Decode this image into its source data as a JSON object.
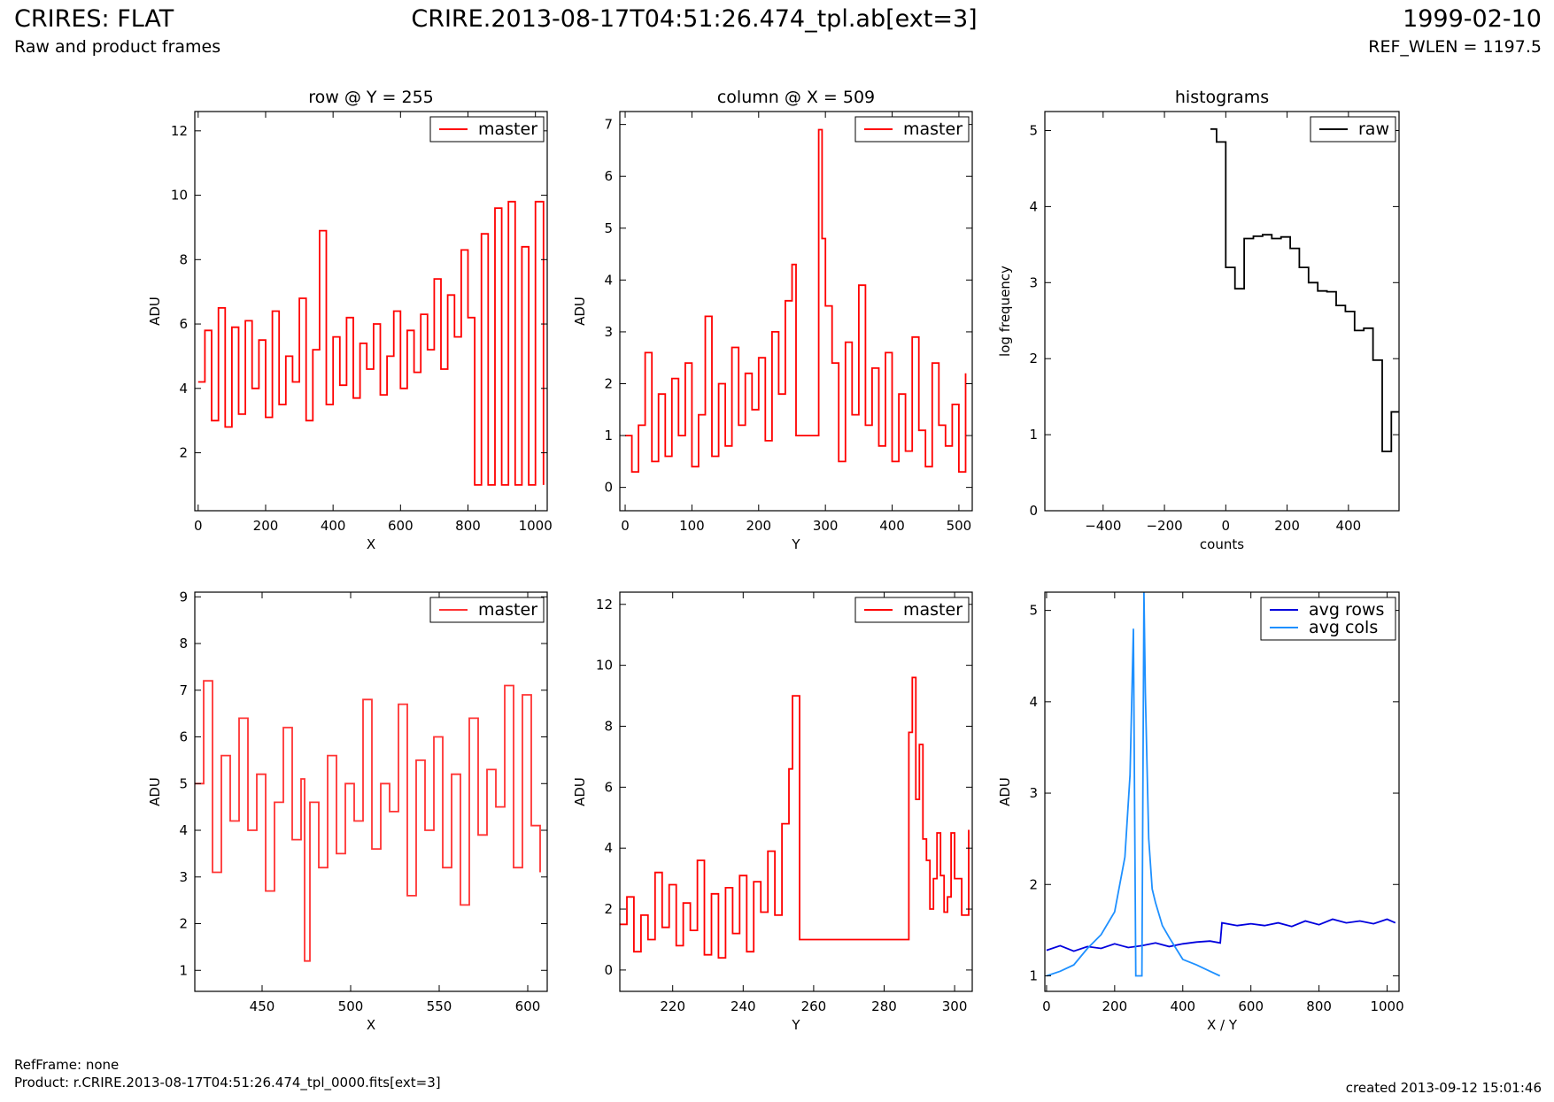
{
  "header": {
    "title": "CRIRES: FLAT",
    "subtitle": "Raw and product frames",
    "filename": "CRIRE.2013-08-17T04:51:26.474_tpl.ab[ext=3]",
    "date": "1999-02-10",
    "ref_wlen": "REF_WLEN = 1197.5"
  },
  "footer": {
    "refframe": "RefFrame: none",
    "product": "Product: r.CRIRE.2013-08-17T04:51:26.474_tpl_0000.fits[ext=3]",
    "created": "created 2013-09-12 15:01:46"
  },
  "colors": {
    "master": "#ff0000",
    "master_zoom": "#ff3333",
    "raw": "#000000",
    "avg_rows": "#0000dd",
    "avg_cols": "#1e90ff"
  },
  "chart_data": [
    {
      "type": "line",
      "id": "row",
      "title": "row @ Y = 255",
      "xlabel": "X",
      "ylabel": "ADU",
      "xlim": [
        -10,
        1035
      ],
      "ylim": [
        0.2,
        12.6
      ],
      "xticks": [
        0,
        200,
        400,
        600,
        800,
        1000
      ],
      "yticks": [
        2,
        4,
        6,
        8,
        10,
        12
      ],
      "legend": "top-right",
      "series": [
        {
          "name": "master",
          "color": "#ff0000",
          "step": true,
          "x": [
            0,
            20,
            40,
            60,
            80,
            100,
            120,
            140,
            160,
            180,
            200,
            220,
            240,
            260,
            280,
            300,
            320,
            340,
            360,
            380,
            400,
            420,
            440,
            460,
            480,
            500,
            520,
            540,
            560,
            580,
            600,
            620,
            640,
            660,
            680,
            700,
            720,
            740,
            760,
            780,
            800,
            820,
            840,
            860,
            880,
            900,
            920,
            940,
            960,
            980,
            1000,
            1024
          ],
          "y": [
            4.2,
            5.8,
            3.0,
            6.5,
            2.8,
            5.9,
            3.2,
            6.1,
            4.0,
            5.5,
            3.1,
            6.4,
            3.5,
            5.0,
            4.2,
            6.8,
            3.0,
            5.2,
            8.9,
            3.5,
            5.6,
            4.1,
            6.2,
            3.7,
            5.4,
            4.6,
            6.0,
            3.8,
            5.0,
            6.4,
            4.0,
            5.8,
            4.5,
            6.3,
            5.2,
            7.4,
            4.6,
            6.9,
            5.6,
            8.3,
            6.2,
            1.0,
            8.8,
            1.0,
            9.6,
            1.0,
            9.8,
            1.0,
            8.4,
            1.0,
            9.8,
            1.0
          ]
        }
      ]
    },
    {
      "type": "line",
      "id": "column",
      "title": "column @ X = 509",
      "xlabel": "Y",
      "ylabel": "ADU",
      "xlim": [
        -8,
        520
      ],
      "ylim": [
        -0.45,
        7.25
      ],
      "xticks": [
        0,
        100,
        200,
        300,
        400,
        500
      ],
      "yticks": [
        0,
        1,
        2,
        3,
        4,
        5,
        6,
        7
      ],
      "legend": "top-right",
      "series": [
        {
          "name": "master",
          "color": "#ff0000",
          "step": true,
          "x": [
            0,
            10,
            20,
            30,
            40,
            50,
            60,
            70,
            80,
            90,
            100,
            110,
            120,
            130,
            140,
            150,
            160,
            170,
            180,
            190,
            200,
            210,
            220,
            230,
            240,
            250,
            256,
            286,
            290,
            295,
            300,
            310,
            320,
            330,
            340,
            350,
            360,
            370,
            380,
            390,
            400,
            410,
            420,
            430,
            440,
            450,
            460,
            470,
            480,
            490,
            500,
            510
          ],
          "y": [
            1.0,
            0.3,
            1.2,
            2.6,
            0.5,
            1.8,
            0.6,
            2.1,
            1.0,
            2.4,
            0.4,
            1.4,
            3.3,
            0.6,
            2.0,
            0.8,
            2.7,
            1.2,
            2.2,
            1.5,
            2.5,
            0.9,
            3.0,
            1.8,
            3.6,
            4.3,
            1.0,
            1.0,
            6.9,
            4.8,
            3.5,
            2.4,
            0.5,
            2.8,
            1.4,
            3.9,
            1.2,
            2.3,
            0.8,
            2.6,
            0.5,
            1.8,
            0.7,
            2.9,
            1.1,
            0.4,
            2.4,
            1.2,
            0.8,
            1.6,
            0.3,
            2.2
          ]
        }
      ]
    },
    {
      "type": "line",
      "id": "histograms",
      "title": "histograms",
      "xlabel": "counts",
      "ylabel": "log frequency",
      "xlim": [
        -590,
        565
      ],
      "ylim": [
        0,
        5.25
      ],
      "xticks": [
        -400,
        -200,
        0,
        200,
        400
      ],
      "yticks": [
        0,
        1,
        2,
        3,
        4,
        5
      ],
      "legend": "top-right",
      "series": [
        {
          "name": "raw",
          "color": "#000000",
          "step": true,
          "x": [
            -50,
            -30,
            0,
            30,
            60,
            90,
            120,
            150,
            180,
            210,
            240,
            270,
            300,
            330,
            360,
            390,
            420,
            450,
            480,
            510,
            540,
            565
          ],
          "y": [
            5.02,
            4.85,
            3.2,
            2.92,
            3.58,
            3.61,
            3.63,
            3.58,
            3.6,
            3.45,
            3.2,
            3.0,
            2.89,
            2.88,
            2.7,
            2.62,
            2.37,
            2.4,
            1.98,
            0.78,
            1.3,
            1.3
          ]
        }
      ]
    },
    {
      "type": "line",
      "id": "row_zoom",
      "title": "",
      "xlabel": "X",
      "ylabel": "ADU",
      "xlim": [
        412,
        611
      ],
      "ylim": [
        0.55,
        9.1
      ],
      "xticks": [
        450,
        500,
        550,
        600
      ],
      "yticks": [
        1,
        2,
        3,
        4,
        5,
        6,
        7,
        8,
        9
      ],
      "legend": "top-right",
      "series": [
        {
          "name": "master",
          "color": "#ff3333",
          "step": true,
          "x": [
            412,
            417,
            422,
            427,
            432,
            437,
            442,
            447,
            452,
            457,
            462,
            467,
            472,
            474,
            477,
            482,
            487,
            492,
            497,
            502,
            507,
            512,
            517,
            522,
            527,
            532,
            537,
            542,
            547,
            552,
            557,
            562,
            567,
            572,
            577,
            582,
            587,
            592,
            597,
            602,
            607
          ],
          "y": [
            5.0,
            7.2,
            3.1,
            5.6,
            4.2,
            6.4,
            4.0,
            5.2,
            2.7,
            4.6,
            6.2,
            3.8,
            5.1,
            1.2,
            4.6,
            3.2,
            5.6,
            3.5,
            5.0,
            4.2,
            6.8,
            3.6,
            5.0,
            4.4,
            6.7,
            2.6,
            5.5,
            4.0,
            6.0,
            3.2,
            5.2,
            2.4,
            6.4,
            3.9,
            5.3,
            4.5,
            7.1,
            3.2,
            6.9,
            4.1,
            3.1
          ]
        }
      ]
    },
    {
      "type": "line",
      "id": "column_zoom",
      "title": "",
      "xlabel": "Y",
      "ylabel": "ADU",
      "xlim": [
        205,
        305
      ],
      "ylim": [
        -0.7,
        12.4
      ],
      "xticks": [
        220,
        240,
        260,
        280,
        300
      ],
      "yticks": [
        0,
        2,
        4,
        6,
        8,
        10,
        12
      ],
      "legend": "top-right",
      "series": [
        {
          "name": "master",
          "color": "#ff0000",
          "step": true,
          "x": [
            205,
            207,
            209,
            211,
            213,
            215,
            217,
            219,
            221,
            223,
            225,
            227,
            229,
            231,
            233,
            235,
            237,
            239,
            241,
            243,
            245,
            247,
            249,
            251,
            253,
            254,
            256,
            286,
            287,
            288,
            289,
            290,
            291,
            292,
            293,
            294,
            295,
            296,
            297,
            298,
            299,
            300,
            302,
            304
          ],
          "y": [
            1.5,
            2.4,
            0.6,
            1.8,
            1.0,
            3.2,
            1.4,
            2.8,
            0.8,
            2.2,
            1.3,
            3.6,
            0.5,
            2.5,
            0.4,
            2.7,
            1.2,
            3.1,
            0.6,
            2.9,
            1.9,
            3.9,
            1.8,
            4.8,
            6.6,
            9.0,
            1.0,
            1.0,
            7.8,
            9.6,
            5.6,
            7.4,
            4.3,
            3.6,
            2.0,
            3.0,
            4.5,
            3.1,
            1.9,
            2.4,
            4.5,
            3.0,
            1.8,
            4.6
          ]
        }
      ]
    },
    {
      "type": "line",
      "id": "averages",
      "title": "",
      "xlabel": "X / Y",
      "ylabel": "ADU",
      "xlim": [
        -5,
        1035
      ],
      "ylim": [
        0.83,
        5.2
      ],
      "xticks": [
        0,
        200,
        400,
        600,
        800,
        1000
      ],
      "yticks": [
        1,
        2,
        3,
        4,
        5
      ],
      "legend": "top-right",
      "series": [
        {
          "name": "avg rows",
          "color": "#0000dd",
          "step": false,
          "x": [
            0,
            40,
            80,
            120,
            160,
            200,
            240,
            280,
            320,
            360,
            400,
            440,
            480,
            510,
            515,
            560,
            600,
            640,
            680,
            720,
            760,
            800,
            840,
            880,
            920,
            960,
            1000,
            1024
          ],
          "y": [
            1.28,
            1.33,
            1.27,
            1.32,
            1.3,
            1.35,
            1.31,
            1.33,
            1.36,
            1.32,
            1.35,
            1.37,
            1.38,
            1.36,
            1.58,
            1.55,
            1.57,
            1.55,
            1.58,
            1.54,
            1.6,
            1.56,
            1.62,
            1.58,
            1.6,
            1.57,
            1.62,
            1.58
          ]
        },
        {
          "name": "avg cols",
          "color": "#1e90ff",
          "step": false,
          "x": [
            0,
            40,
            80,
            120,
            160,
            200,
            230,
            245,
            255,
            262,
            280,
            286,
            290,
            300,
            310,
            320,
            340,
            360,
            380,
            400,
            440,
            480,
            509
          ],
          "y": [
            1.0,
            1.05,
            1.12,
            1.3,
            1.45,
            1.7,
            2.3,
            3.2,
            4.8,
            1.0,
            1.0,
            5.2,
            4.1,
            2.5,
            1.95,
            1.8,
            1.55,
            1.42,
            1.3,
            1.18,
            1.12,
            1.05,
            1.0
          ]
        }
      ]
    }
  ]
}
